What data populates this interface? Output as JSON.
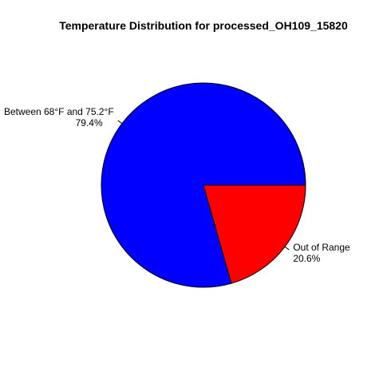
{
  "chart_data": {
    "type": "pie",
    "title": "Temperature Distribution for processed_OH109_15820",
    "slices": [
      {
        "label": "Between 68°F and 75.2°F",
        "value": 79.4,
        "percent_label": "79.4%",
        "color": "#0000ff"
      },
      {
        "label": "Out of Range",
        "value": 20.6,
        "percent_label": "20.6%",
        "color": "#ff0000"
      }
    ],
    "start_angle_deg": 0,
    "direction": "counterclockwise",
    "outline_color": "#000000",
    "background": "#ffffff"
  }
}
